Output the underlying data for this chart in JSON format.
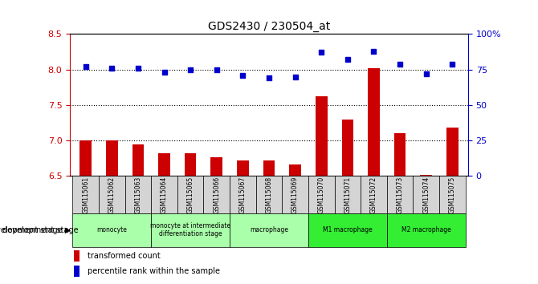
{
  "title": "GDS2430 / 230504_at",
  "samples": [
    "GSM115061",
    "GSM115062",
    "GSM115063",
    "GSM115064",
    "GSM115065",
    "GSM115066",
    "GSM115067",
    "GSM115068",
    "GSM115069",
    "GSM115070",
    "GSM115071",
    "GSM115072",
    "GSM115073",
    "GSM115074",
    "GSM115075"
  ],
  "bar_values": [
    7.0,
    7.0,
    6.95,
    6.82,
    6.82,
    6.77,
    6.72,
    6.72,
    6.66,
    7.62,
    7.3,
    8.02,
    7.1,
    6.52,
    7.18
  ],
  "dot_values": [
    77,
    76,
    76,
    73,
    75,
    75,
    71,
    69,
    70,
    87,
    82,
    88,
    79,
    72,
    79
  ],
  "bar_color": "#cc0000",
  "dot_color": "#0000cc",
  "ylim_left": [
    6.5,
    8.5
  ],
  "ylim_right": [
    0,
    100
  ],
  "yticks_left": [
    6.5,
    7.0,
    7.5,
    8.0,
    8.5
  ],
  "yticks_right": [
    0,
    25,
    50,
    75,
    100
  ],
  "ytick_labels_right": [
    "0",
    "25",
    "50",
    "75",
    "100%"
  ],
  "hlines": [
    7.0,
    7.5,
    8.0
  ],
  "groups": [
    {
      "label": "monocyte",
      "start": 0,
      "end": 2,
      "color": "#aaffaa"
    },
    {
      "label": "monocyte at intermediate\ndifferentiation stage",
      "start": 3,
      "end": 5,
      "color": "#aaffaa"
    },
    {
      "label": "macrophage",
      "start": 6,
      "end": 8,
      "color": "#aaffaa"
    },
    {
      "label": "M1 macrophage",
      "start": 9,
      "end": 11,
      "color": "#33ee33"
    },
    {
      "label": "M2 macrophage",
      "start": 12,
      "end": 14,
      "color": "#33ee33"
    }
  ],
  "legend_bar_label": "transformed count",
  "legend_dot_label": "percentile rank within the sample",
  "dev_stage_label": "development stage"
}
